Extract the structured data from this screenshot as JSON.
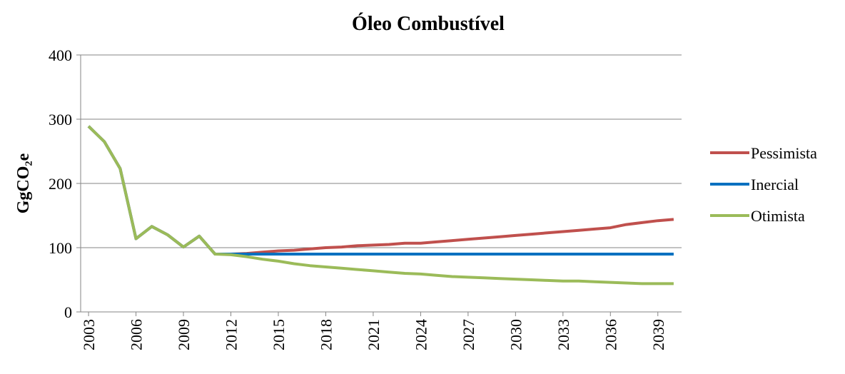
{
  "chart_data": {
    "type": "line",
    "title": "Óleo Combustível",
    "y_label": "GgCO₂e",
    "x": [
      2003,
      2004,
      2005,
      2006,
      2007,
      2008,
      2009,
      2010,
      2011,
      2012,
      2013,
      2014,
      2015,
      2016,
      2017,
      2018,
      2019,
      2020,
      2021,
      2022,
      2023,
      2024,
      2025,
      2026,
      2027,
      2028,
      2029,
      2030,
      2031,
      2032,
      2033,
      2034,
      2035,
      2036,
      2037,
      2038,
      2039,
      2040
    ],
    "xlim": [
      2002.5,
      2040.5
    ],
    "xticks": [
      2003,
      2006,
      2009,
      2012,
      2015,
      2018,
      2021,
      2024,
      2027,
      2030,
      2033,
      2036,
      2039
    ],
    "ylim": [
      0,
      400
    ],
    "yticks": [
      0,
      100,
      200,
      300,
      400
    ],
    "grid": true,
    "legend": "right",
    "series": [
      {
        "name": "Pessimista",
        "color": "#c0504d",
        "values": [
          289,
          265,
          223,
          114,
          133,
          120,
          101,
          118,
          90,
          90,
          91,
          93,
          95,
          96,
          98,
          100,
          101,
          103,
          104,
          105,
          107,
          107,
          109,
          111,
          113,
          115,
          117,
          119,
          121,
          123,
          125,
          127,
          129,
          131,
          136,
          139,
          142,
          144
        ]
      },
      {
        "name": "Inercial",
        "color": "#0070c0",
        "values": [
          289,
          265,
          223,
          114,
          133,
          120,
          101,
          118,
          90,
          90,
          90,
          90,
          90,
          90,
          90,
          90,
          90,
          90,
          90,
          90,
          90,
          90,
          90,
          90,
          90,
          90,
          90,
          90,
          90,
          90,
          90,
          90,
          90,
          90,
          90,
          90,
          90,
          90
        ]
      },
      {
        "name": "Otimista",
        "color": "#9bbb59",
        "values": [
          289,
          265,
          223,
          114,
          133,
          120,
          101,
          118,
          90,
          89,
          86,
          82,
          79,
          75,
          72,
          70,
          68,
          66,
          64,
          62,
          60,
          59,
          57,
          55,
          54,
          53,
          52,
          51,
          50,
          49,
          48,
          48,
          47,
          46,
          45,
          44,
          44,
          44
        ]
      }
    ]
  }
}
